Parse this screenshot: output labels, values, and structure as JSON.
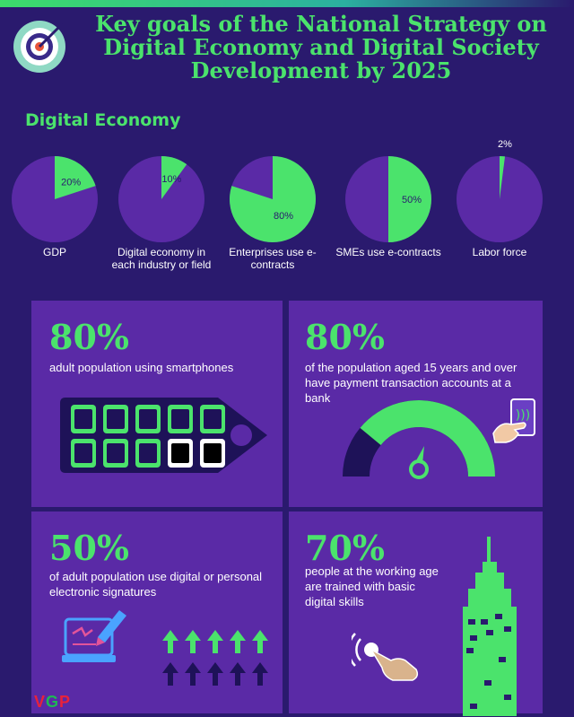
{
  "title": "Key goals of the National Strategy on Digital Economy and Digital Society Development by 2025",
  "section_title": "Digital Economy",
  "colors": {
    "background": "#2a1a6e",
    "panel": "#5a2aa6",
    "accent": "#4be36c",
    "pie_base": "#5a2aa6"
  },
  "chart_data": {
    "type": "pie",
    "title": "Digital Economy",
    "series": [
      {
        "name": "GDP",
        "values": [
          20
        ],
        "label": "20%"
      },
      {
        "name": "Digital economy in each industry or field",
        "values": [
          10
        ],
        "label": "10%"
      },
      {
        "name": "Enterprises use e-contracts",
        "values": [
          80
        ],
        "label": "80%"
      },
      {
        "name": "SMEs use e-contracts",
        "values": [
          50
        ],
        "label": "50%"
      },
      {
        "name": "Labor force",
        "values": [
          2
        ],
        "label": "2%"
      }
    ]
  },
  "pies": [
    {
      "value": 20,
      "label": "20%",
      "caption": "GDP"
    },
    {
      "value": 10,
      "label": "10%",
      "caption": "Digital economy in each industry or field"
    },
    {
      "value": 80,
      "label": "80%",
      "caption": "Enterprises use e-contracts"
    },
    {
      "value": 50,
      "label": "50%",
      "caption": "SMEs use e-contracts"
    },
    {
      "value": 2,
      "label": "2%",
      "caption": "Labor force"
    }
  ],
  "panels": {
    "smartphones": {
      "value": "80%",
      "text": "adult population using smartphones",
      "icons_filled": 8,
      "icons_total": 10
    },
    "bank_accounts": {
      "value": "80%",
      "text": "of the population aged 15 years and over have payment transaction accounts at a bank",
      "gauge_level": 0.8
    },
    "signatures": {
      "value": "50%",
      "text": "of adult population use digital or personal electronic signatures"
    },
    "skills": {
      "value": "70%",
      "text": "people at the working age are trained with basic digital skills"
    }
  },
  "logo": {
    "text": "VGP"
  }
}
